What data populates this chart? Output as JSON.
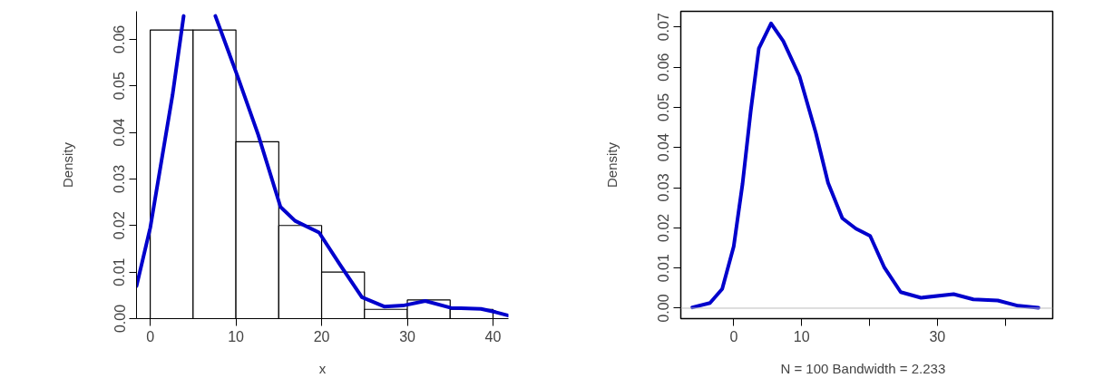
{
  "chart_data": [
    {
      "type": "histogram",
      "xlabel": "x",
      "ylabel": "Density",
      "bins": [
        0,
        5,
        10,
        15,
        20,
        25,
        30,
        35,
        40
      ],
      "values": [
        0.062,
        0.062,
        0.038,
        0.02,
        0.01,
        0.002,
        0.004,
        0.002
      ],
      "color": "#ffffff",
      "xlim": [
        -1.6,
        41.8
      ],
      "ylim": [
        0,
        0.066
      ],
      "xticks": [
        0,
        10,
        20,
        30,
        40
      ],
      "yticks": [
        {
          "value": 0,
          "label": "0.00"
        },
        {
          "value": 0.01,
          "label": "0.01"
        },
        {
          "value": 0.02,
          "label": "0.02"
        },
        {
          "value": 0.03,
          "label": "0.03"
        },
        {
          "value": 0.04,
          "label": "0.04"
        },
        {
          "value": 0.05,
          "label": "0.05"
        },
        {
          "value": 0.06,
          "label": "0.06"
        }
      ],
      "series": [
        {
          "type": "line",
          "color": "#0000cc",
          "x": [
            -1.6,
            0,
            2.6,
            3.9,
            5.5,
            7.6,
            10.2,
            12.6,
            15.2,
            16.9,
            19.7,
            22.1,
            24.7,
            27.3,
            29.5,
            32.1,
            35.1,
            38.6,
            40.3,
            41.7
          ],
          "values": [
            0.007,
            0.0195,
            0.048,
            0.065,
            null,
            0.065,
            0.052,
            0.0395,
            0.024,
            0.021,
            0.0185,
            0.0117,
            0.0046,
            0.0026,
            0.0028,
            0.0038,
            0.0023,
            0.0021,
            0.0014,
            0.0007
          ]
        }
      ]
    },
    {
      "type": "line",
      "xlabel": "N = 100   Bandwidth = 2.233",
      "ylabel": "Density",
      "xlim": [
        -7.8,
        47.0
      ],
      "ylim": [
        -0.0026,
        0.0739
      ],
      "xticks": [
        0,
        10,
        {
          "value": 20,
          "label": null
        },
        30,
        {
          "value": 40,
          "label": null
        }
      ],
      "yticks": [
        {
          "value": 0,
          "label": "0.00"
        },
        {
          "value": 0.01,
          "label": "0.01"
        },
        {
          "value": 0.02,
          "label": "0.02"
        },
        {
          "value": 0.03,
          "label": "0.03"
        },
        {
          "value": 0.04,
          "label": "0.04"
        },
        {
          "value": 0.05,
          "label": "0.05"
        },
        {
          "value": 0.06,
          "label": "0.06"
        },
        {
          "value": 0.07,
          "label": "0.07"
        }
      ],
      "ref_lines": [
        {
          "axis": "y",
          "value": 0,
          "color": "#bebebe"
        }
      ],
      "series": [
        {
          "color": "#0000cc",
          "x": [
            -6.1,
            -3.5,
            -1.7,
            0,
            1.3,
            2.5,
            3.7,
            5.5,
            7.3,
            9.7,
            12.1,
            13.9,
            16.0,
            18.0,
            20.1,
            22.2,
            24.6,
            27.6,
            32.4,
            35.3,
            38.9,
            41.9,
            44.9
          ],
          "values": [
            0.0002,
            0.0013,
            0.0048,
            0.0154,
            0.031,
            0.049,
            0.0647,
            0.0709,
            0.0665,
            0.0577,
            0.0436,
            0.0312,
            0.0224,
            0.0198,
            0.018,
            0.0101,
            0.004,
            0.0026,
            0.0035,
            0.0022,
            0.0019,
            0.0006,
            0.0001
          ]
        }
      ]
    }
  ]
}
